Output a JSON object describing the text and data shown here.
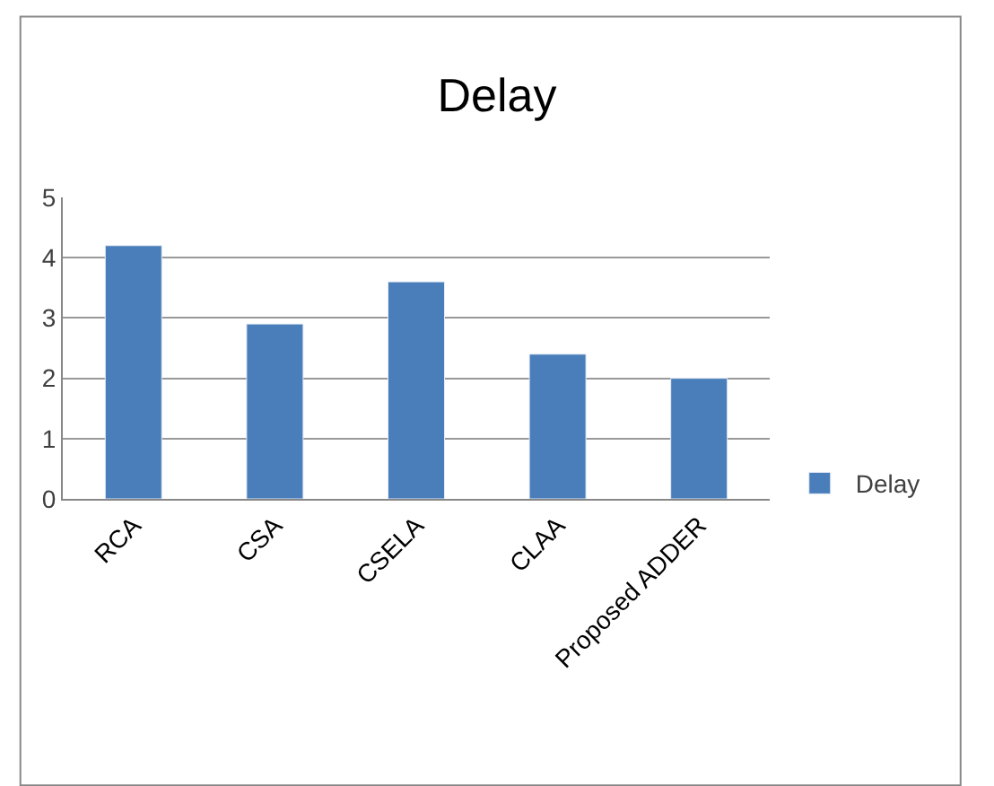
{
  "chart_data": {
    "type": "bar",
    "title": "Delay",
    "categories": [
      "RCA",
      "CSA",
      "CSELA",
      "CLAA",
      "Proposed ADDER"
    ],
    "series": [
      {
        "name": "Delay",
        "color": "#4a7ebb",
        "values": [
          4.2,
          2.9,
          3.6,
          2.4,
          2.0
        ]
      }
    ],
    "ylim": [
      0,
      5
    ],
    "yticks": [
      0,
      1,
      2,
      3,
      4,
      5
    ],
    "grid": "y",
    "legend": "right"
  }
}
